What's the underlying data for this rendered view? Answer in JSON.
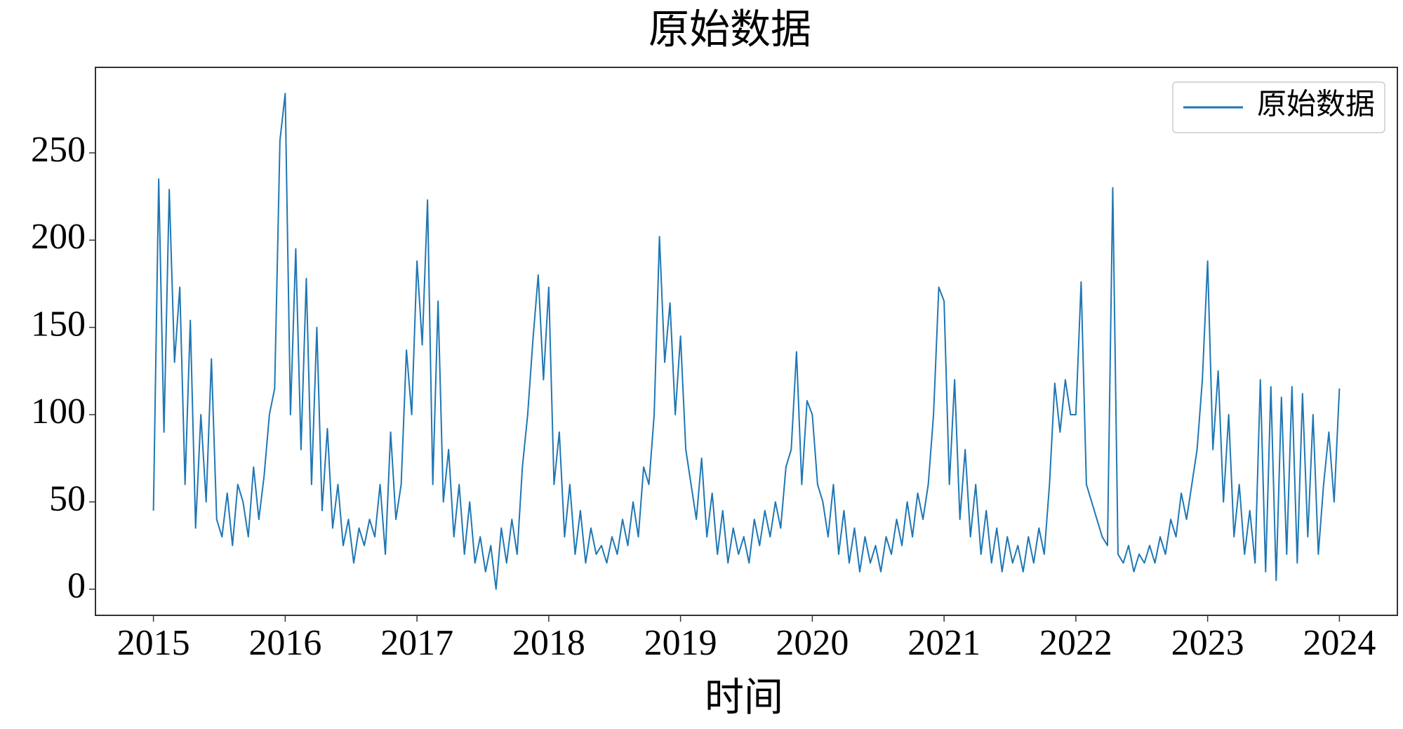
{
  "chart_data": {
    "type": "line",
    "title": "原始数据",
    "xlabel": "时间",
    "legend": "upper right",
    "grid": false,
    "xlim": [
      2014.56,
      2024.44
    ],
    "xticks": [
      2015,
      2016,
      2017,
      2018,
      2019,
      2020,
      2021,
      2022,
      2023,
      2024
    ],
    "ylim": [
      -15,
      299
    ],
    "yticks": [
      0,
      50,
      100,
      150,
      200,
      250
    ],
    "x": [
      2015,
      2015.04,
      2015.08,
      2015.12,
      2015.16,
      2015.2,
      2015.24,
      2015.28,
      2015.32,
      2015.36,
      2015.4,
      2015.44,
      2015.48,
      2015.52,
      2015.56,
      2015.6,
      2015.64,
      2015.68,
      2015.72,
      2015.76,
      2015.8,
      2015.84,
      2015.88,
      2015.92,
      2015.96,
      2016,
      2016.04,
      2016.08,
      2016.12,
      2016.16,
      2016.2,
      2016.24,
      2016.28,
      2016.32,
      2016.36,
      2016.4,
      2016.44,
      2016.48,
      2016.52,
      2016.56,
      2016.6,
      2016.64,
      2016.68,
      2016.72,
      2016.76,
      2016.8,
      2016.84,
      2016.88,
      2016.92,
      2016.96,
      2017,
      2017.04,
      2017.08,
      2017.12,
      2017.16,
      2017.2,
      2017.24,
      2017.28,
      2017.32,
      2017.36,
      2017.4,
      2017.44,
      2017.48,
      2017.52,
      2017.56,
      2017.6,
      2017.64,
      2017.68,
      2017.72,
      2017.76,
      2017.8,
      2017.84,
      2017.88,
      2017.92,
      2017.96,
      2018,
      2018.04,
      2018.08,
      2018.12,
      2018.16,
      2018.2,
      2018.24,
      2018.28,
      2018.32,
      2018.36,
      2018.4,
      2018.44,
      2018.48,
      2018.52,
      2018.56,
      2018.6,
      2018.64,
      2018.68,
      2018.72,
      2018.76,
      2018.8,
      2018.84,
      2018.88,
      2018.92,
      2018.96,
      2019,
      2019.04,
      2019.08,
      2019.12,
      2019.16,
      2019.2,
      2019.24,
      2019.28,
      2019.32,
      2019.36,
      2019.4,
      2019.44,
      2019.48,
      2019.52,
      2019.56,
      2019.6,
      2019.64,
      2019.68,
      2019.72,
      2019.76,
      2019.8,
      2019.84,
      2019.88,
      2019.92,
      2019.96,
      2020,
      2020.04,
      2020.08,
      2020.12,
      2020.16,
      2020.2,
      2020.24,
      2020.28,
      2020.32,
      2020.36,
      2020.4,
      2020.44,
      2020.48,
      2020.52,
      2020.56,
      2020.6,
      2020.64,
      2020.68,
      2020.72,
      2020.76,
      2020.8,
      2020.84,
      2020.88,
      2020.92,
      2020.96,
      2021,
      2021.04,
      2021.08,
      2021.12,
      2021.16,
      2021.2,
      2021.24,
      2021.28,
      2021.32,
      2021.36,
      2021.4,
      2021.44,
      2021.48,
      2021.52,
      2021.56,
      2021.6,
      2021.64,
      2021.68,
      2021.72,
      2021.76,
      2021.8,
      2021.84,
      2021.88,
      2021.92,
      2021.96,
      2022,
      2022.04,
      2022.08,
      2022.12,
      2022.16,
      2022.2,
      2022.24,
      2022.28,
      2022.32,
      2022.36,
      2022.4,
      2022.44,
      2022.48,
      2022.52,
      2022.56,
      2022.6,
      2022.64,
      2022.68,
      2022.72,
      2022.76,
      2022.8,
      2022.84,
      2022.88,
      2022.92,
      2022.96,
      2023,
      2023.04,
      2023.08,
      2023.12,
      2023.16,
      2023.2,
      2023.24,
      2023.28,
      2023.32,
      2023.36,
      2023.4,
      2023.44,
      2023.48,
      2023.52,
      2023.56,
      2023.6,
      2023.64,
      2023.68,
      2023.72,
      2023.76,
      2023.8,
      2023.84,
      2023.88,
      2023.92,
      2023.96,
      2024
    ],
    "series": [
      {
        "name": "原始数据",
        "color": "#1f77b4",
        "values": [
          45,
          235,
          90,
          229,
          130,
          173,
          60,
          154,
          35,
          100,
          50,
          132,
          40,
          30,
          55,
          25,
          60,
          50,
          30,
          70,
          40,
          65,
          100,
          115,
          257,
          284,
          100,
          195,
          80,
          178,
          60,
          150,
          45,
          92,
          35,
          60,
          25,
          40,
          15,
          35,
          25,
          40,
          30,
          60,
          20,
          90,
          40,
          60,
          137,
          100,
          188,
          140,
          223,
          60,
          165,
          50,
          80,
          30,
          60,
          20,
          50,
          15,
          30,
          10,
          25,
          0,
          35,
          15,
          40,
          20,
          70,
          100,
          143,
          180,
          120,
          173,
          60,
          90,
          30,
          60,
          20,
          45,
          15,
          35,
          20,
          25,
          15,
          30,
          20,
          40,
          25,
          50,
          30,
          70,
          60,
          100,
          202,
          130,
          164,
          100,
          145,
          80,
          60,
          40,
          75,
          30,
          55,
          20,
          45,
          15,
          35,
          20,
          30,
          15,
          40,
          25,
          45,
          30,
          50,
          35,
          70,
          80,
          136,
          60,
          108,
          100,
          60,
          50,
          30,
          60,
          20,
          45,
          15,
          35,
          10,
          30,
          15,
          25,
          10,
          30,
          20,
          40,
          25,
          50,
          30,
          55,
          40,
          60,
          100,
          173,
          165,
          60,
          120,
          40,
          80,
          30,
          60,
          20,
          45,
          15,
          35,
          10,
          30,
          15,
          25,
          10,
          30,
          15,
          35,
          20,
          60,
          118,
          90,
          120,
          100,
          100,
          176,
          60,
          50,
          40,
          30,
          25,
          230,
          20,
          15,
          25,
          10,
          20,
          15,
          25,
          15,
          30,
          20,
          40,
          30,
          55,
          40,
          60,
          80,
          120,
          188,
          80,
          125,
          50,
          100,
          30,
          60,
          20,
          45,
          15,
          120,
          10,
          116,
          5,
          110,
          20,
          116,
          15,
          112,
          30,
          100,
          20,
          60,
          90,
          50,
          115
        ]
      }
    ]
  }
}
